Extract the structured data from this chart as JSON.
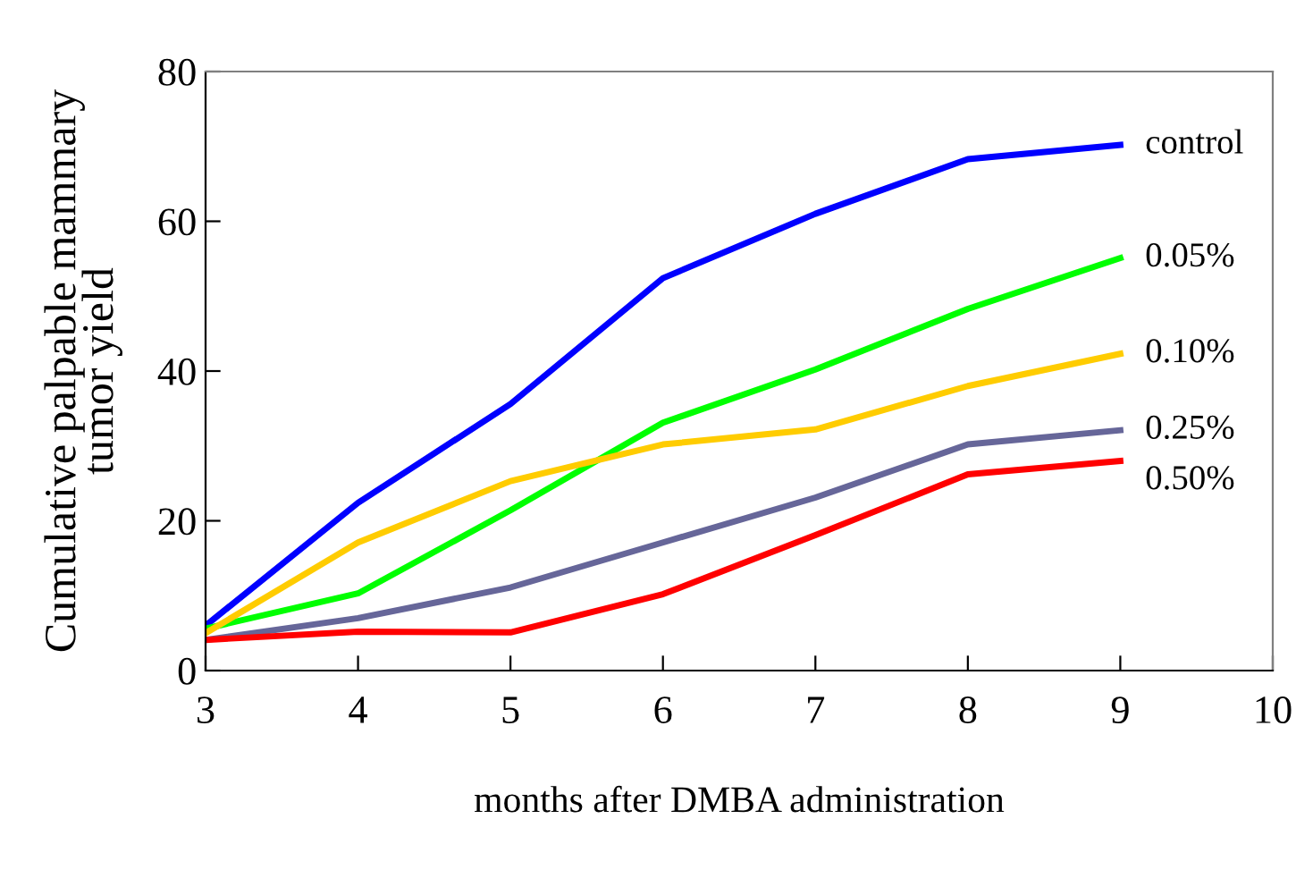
{
  "chart_data": {
    "type": "line",
    "xlabel": "months after DMBA administration",
    "ylabel": "Cumulative palpable mammary\ntumor yield",
    "x": [
      3,
      4,
      5,
      6,
      7,
      8,
      9
    ],
    "series": [
      {
        "name": "control",
        "color": "#0000ff",
        "values": [
          6,
          22.4,
          35.6,
          52.4,
          61,
          68.3,
          70.2
        ]
      },
      {
        "name": "0.05%",
        "color": "#00ff00",
        "values": [
          5.6,
          10.3,
          21.4,
          33.1,
          40.2,
          48.3,
          55.1
        ]
      },
      {
        "name": "0.10%",
        "color": "#ffcc00",
        "values": [
          5,
          17.1,
          25.3,
          30.2,
          32.2,
          38,
          42.3
        ]
      },
      {
        "name": "0.25%",
        "color": "#666699",
        "values": [
          4.1,
          7,
          11.1,
          17.1,
          23.1,
          30.2,
          32.1
        ]
      },
      {
        "name": "0.50%",
        "color": "#ff0000",
        "values": [
          4.1,
          5.2,
          5.1,
          10.2,
          18.1,
          26.2,
          28
        ]
      }
    ],
    "xlim": [
      3,
      10
    ],
    "xticks": [
      3,
      4,
      5,
      6,
      7,
      8,
      9,
      10
    ],
    "ylim": [
      0,
      80
    ],
    "yticks": [
      0,
      20,
      40,
      60,
      80
    ],
    "grid": false,
    "legend": false
  }
}
